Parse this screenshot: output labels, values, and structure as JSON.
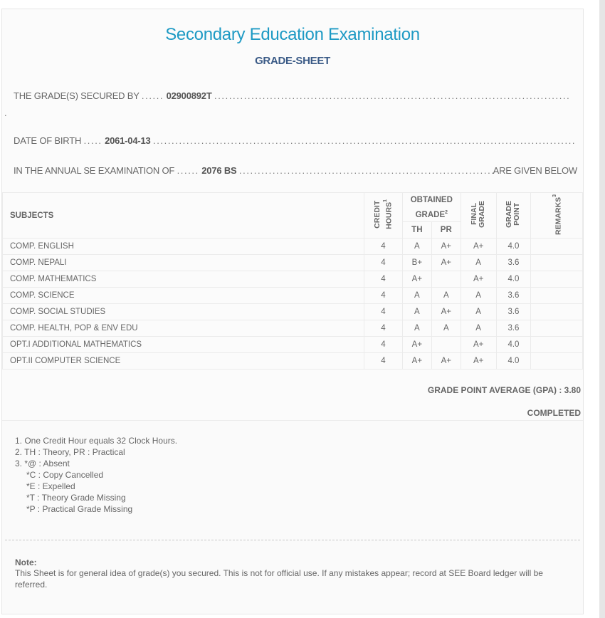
{
  "header": {
    "title": "Secondary Education Examination",
    "subtitle": "GRADE-SHEET"
  },
  "info": {
    "secured_by_label": "THE GRADE(S) SECURED BY",
    "symbol_no": "02900892T",
    "dob_label": "DATE OF BIRTH",
    "dob": "2061-04-13",
    "exam_label": "IN THE ANNUAL SE EXAMINATION OF",
    "exam_year": "2076 BS",
    "exam_suffix": "ARE GIVEN BELOW"
  },
  "table": {
    "headers": {
      "subjects": "SUBJECTS",
      "credit_hours": "CREDIT HOURS",
      "credit_sup": "1",
      "obtained_grade": "OBTAINED GRADE",
      "obtained_sup": "2",
      "th": "TH",
      "pr": "PR",
      "final_grade": "FINAL GRADE",
      "grade_point": "GRADE POINT",
      "remarks": "REMARKS",
      "remarks_sup": "3"
    },
    "rows": [
      {
        "subject": "COMP. ENGLISH",
        "credit": "4",
        "th": "A",
        "pr": "A+",
        "final": "A+",
        "gp": "4.0",
        "remarks": ""
      },
      {
        "subject": "COMP. NEPALI",
        "credit": "4",
        "th": "B+",
        "pr": "A+",
        "final": "A",
        "gp": "3.6",
        "remarks": ""
      },
      {
        "subject": "COMP. MATHEMATICS",
        "credit": "4",
        "th": "A+",
        "pr": "",
        "final": "A+",
        "gp": "4.0",
        "remarks": ""
      },
      {
        "subject": "COMP. SCIENCE",
        "credit": "4",
        "th": "A",
        "pr": "A",
        "final": "A",
        "gp": "3.6",
        "remarks": ""
      },
      {
        "subject": "COMP. SOCIAL STUDIES",
        "credit": "4",
        "th": "A",
        "pr": "A+",
        "final": "A",
        "gp": "3.6",
        "remarks": ""
      },
      {
        "subject": "COMP. HEALTH, POP & ENV EDU",
        "credit": "4",
        "th": "A",
        "pr": "A",
        "final": "A",
        "gp": "3.6",
        "remarks": ""
      },
      {
        "subject": "OPT.I ADDITIONAL MATHEMATICS",
        "credit": "4",
        "th": "A+",
        "pr": "",
        "final": "A+",
        "gp": "4.0",
        "remarks": ""
      },
      {
        "subject": "OPT.II COMPUTER SCIENCE",
        "credit": "4",
        "th": "A+",
        "pr": "A+",
        "final": "A+",
        "gp": "4.0",
        "remarks": ""
      }
    ]
  },
  "summary": {
    "gpa": "GRADE POINT AVERAGE (GPA) : 3.80",
    "status": "COMPLETED"
  },
  "legend": [
    "1. One Credit Hour equals 32 Clock Hours.",
    "2. TH : Theory, PR : Practical",
    "3. *@ : Absent",
    "*C : Copy Cancelled",
    "*E : Expelled",
    "*T : Theory Grade Missing",
    "*P : Practical Grade Missing"
  ],
  "note": {
    "heading": "Note:",
    "text": "This Sheet is for general idea of grade(s) you secured. This is not for official use. If any mistakes appear; record at SEE Board ledger will be referred."
  },
  "colors": {
    "title": "#1e9ac4",
    "subtitle": "#3a5a86"
  }
}
